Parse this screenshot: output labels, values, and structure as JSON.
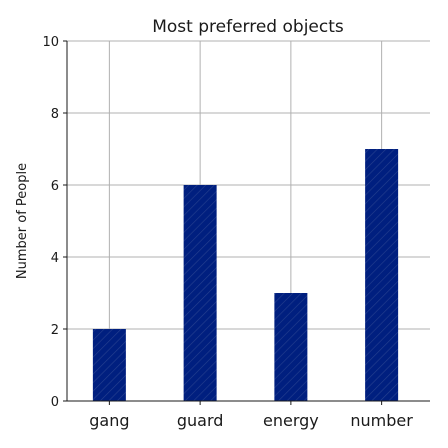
{
  "chart_data": {
    "type": "bar",
    "title": "Most preferred objects",
    "xlabel": "",
    "ylabel": "Number of People",
    "categories": [
      "gang",
      "guard",
      "energy",
      "number"
    ],
    "values": [
      2,
      6,
      3,
      7
    ],
    "ylim": [
      0,
      10
    ],
    "yticks": [
      "0",
      "2",
      "4",
      "6",
      "8",
      "10"
    ],
    "grid": true,
    "bar_color": "#001f7f",
    "hatch": "/"
  }
}
